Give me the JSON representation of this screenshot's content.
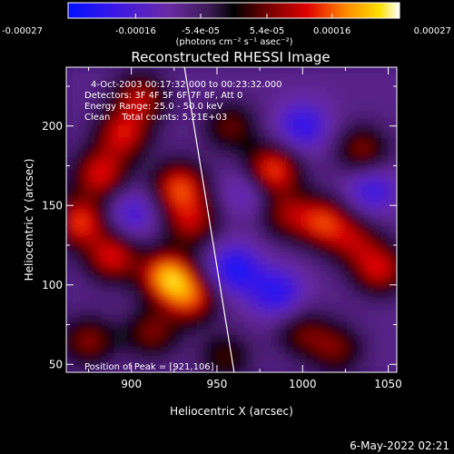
{
  "chart_data": {
    "type": "heatmap",
    "title": "Reconstructed RHESSI Image",
    "xlabel": "Heliocentric X (arcsec)",
    "ylabel": "Heliocentric Y (arcsec)",
    "xlim": [
      862,
      1055
    ],
    "ylim": [
      45,
      237
    ],
    "xticks": [
      900,
      950,
      1000,
      1050
    ],
    "yticks": [
      50,
      100,
      150,
      200
    ],
    "colorbar": {
      "colormap": "blue-purple-black-red-orange-yellow-white",
      "range": [
        -0.00027,
        0.00027
      ],
      "tick_labels": [
        "-0.00027",
        "-0.00016",
        "-5.4e-05",
        "5.4e-05",
        "0.00016",
        "0.00027"
      ],
      "unit_label": "(photons cm⁻² s⁻¹ asec⁻²)"
    },
    "annotations": {
      "time_range": "4-Oct-2003 00:17:32.000 to 00:23:32.000",
      "detectors": "Detectors: 3F 4F 5F 6F 7F 8F, Att 0",
      "energy_range": "Energy Range: 25.0 - 50.0 keV",
      "clean_counts": "Clean    Total counts: 5.21E+03",
      "peak": "Position of Peak = [921,106]"
    },
    "limb_line": {
      "x": [
        931,
        960
      ],
      "y": [
        237,
        45
      ]
    },
    "bright_sources": [
      {
        "x": 870,
        "y": 140,
        "value": 0.00022
      },
      {
        "x": 882,
        "y": 170,
        "value": 0.0002
      },
      {
        "x": 895,
        "y": 195,
        "value": 0.00019
      },
      {
        "x": 905,
        "y": 218,
        "value": 0.00017
      },
      {
        "x": 889,
        "y": 118,
        "value": 0.0002
      },
      {
        "x": 921,
        "y": 106,
        "value": 0.00027
      },
      {
        "x": 935,
        "y": 92,
        "value": 0.0002
      },
      {
        "x": 912,
        "y": 70,
        "value": 0.00014
      },
      {
        "x": 928,
        "y": 162,
        "value": 0.00022
      },
      {
        "x": 935,
        "y": 140,
        "value": 0.00017
      },
      {
        "x": 982,
        "y": 172,
        "value": 0.00025
      },
      {
        "x": 990,
        "y": 145,
        "value": 0.00014
      },
      {
        "x": 1012,
        "y": 140,
        "value": 0.0002
      },
      {
        "x": 1035,
        "y": 185,
        "value": 0.00015
      },
      {
        "x": 1045,
        "y": 110,
        "value": 0.00019
      },
      {
        "x": 1030,
        "y": 128,
        "value": 0.00014
      },
      {
        "x": 958,
        "y": 200,
        "value": 0.00013
      },
      {
        "x": 875,
        "y": 65,
        "value": 0.00015
      },
      {
        "x": 1000,
        "y": 70,
        "value": 0.00012
      },
      {
        "x": 1020,
        "y": 60,
        "value": 0.00013
      },
      {
        "x": 955,
        "y": 55,
        "value": 0.00011
      }
    ],
    "negative_regions": [
      {
        "x": 960,
        "y": 110,
        "value": -0.00016
      },
      {
        "x": 985,
        "y": 95,
        "value": -0.00014
      },
      {
        "x": 1000,
        "y": 200,
        "value": -0.00013
      },
      {
        "x": 1040,
        "y": 160,
        "value": -0.00012
      },
      {
        "x": 970,
        "y": 160,
        "value": -0.0001
      },
      {
        "x": 900,
        "y": 145,
        "value": -0.00011
      }
    ]
  },
  "footer": {
    "timestamp": "6-May-2022 02:21"
  },
  "colors": {
    "background": "#000000",
    "foreground": "#ffffff",
    "limb_line": "#ffffff"
  }
}
